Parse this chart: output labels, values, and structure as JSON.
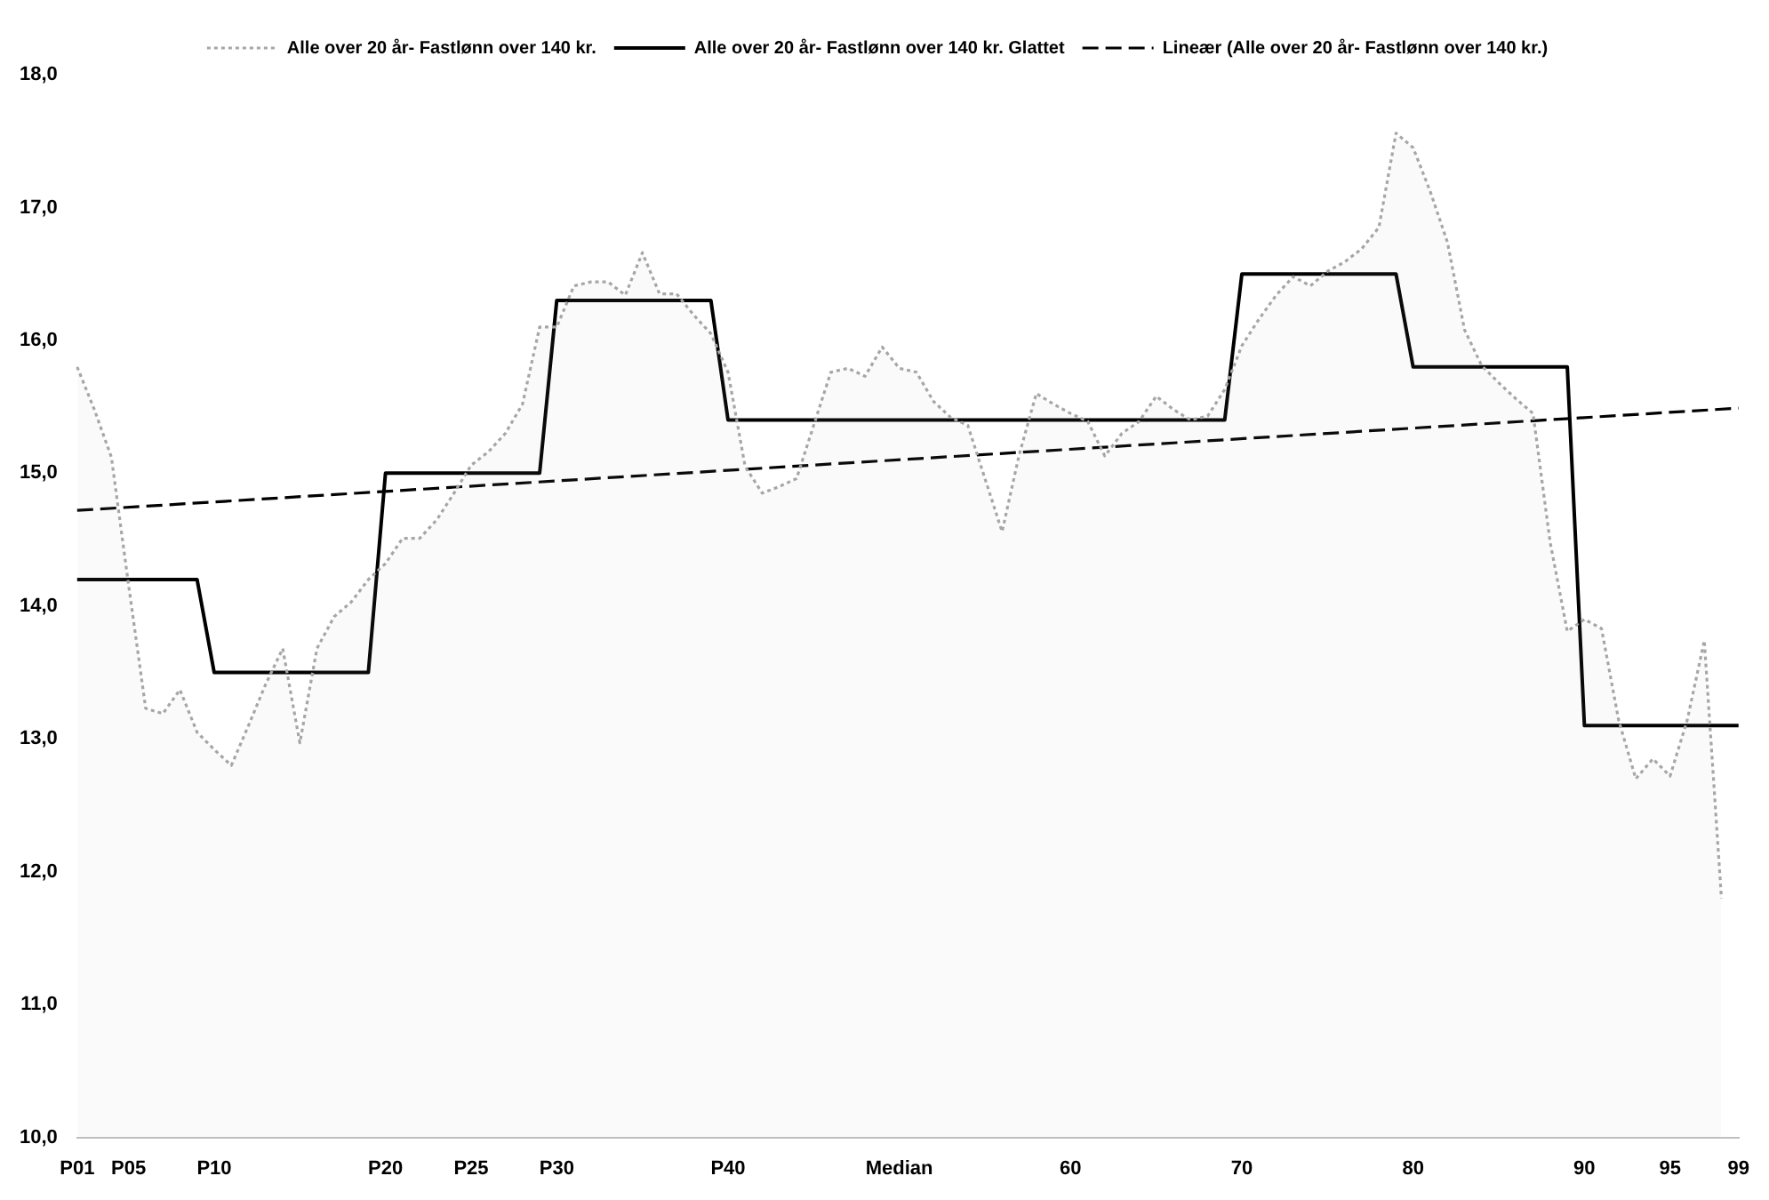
{
  "chart_data": {
    "type": "line",
    "categories": [
      "P01",
      null,
      null,
      "P05",
      null,
      null,
      null,
      null,
      "P10",
      null,
      null,
      null,
      null,
      null,
      null,
      null,
      null,
      null,
      "P20",
      null,
      null,
      null,
      null,
      "P25",
      null,
      null,
      null,
      null,
      "P30",
      null,
      null,
      null,
      null,
      null,
      null,
      null,
      null,
      null,
      "P40",
      null,
      null,
      null,
      null,
      null,
      null,
      null,
      null,
      null,
      "Median",
      null,
      null,
      null,
      null,
      null,
      null,
      null,
      null,
      null,
      "60",
      null,
      null,
      null,
      null,
      null,
      null,
      null,
      null,
      null,
      "70",
      null,
      null,
      null,
      null,
      null,
      null,
      null,
      null,
      null,
      "80",
      null,
      null,
      null,
      null,
      null,
      null,
      null,
      null,
      null,
      "90",
      null,
      null,
      null,
      null,
      "95",
      null,
      null,
      null,
      "99"
    ],
    "series": [
      {
        "name": "Alle over 20 år- Fastlønn over 140 kr.",
        "type": "area",
        "color": "#a6a6a6",
        "line_style": "dotted",
        "values": [
          15.8,
          15.48,
          15.12,
          14.16,
          13.23,
          13.19,
          13.37,
          13.05,
          12.92,
          12.8,
          13.1,
          13.41,
          13.68,
          12.97,
          13.68,
          13.92,
          14.03,
          14.2,
          14.32,
          14.51,
          14.51,
          14.65,
          14.85,
          15.06,
          15.16,
          15.3,
          15.52,
          16.1,
          16.1,
          16.41,
          16.44,
          16.44,
          16.34,
          16.66,
          16.35,
          16.35,
          16.19,
          16.05,
          15.76,
          15.05,
          14.85,
          14.9,
          14.96,
          15.36,
          15.76,
          15.79,
          15.73,
          15.95,
          15.79,
          15.76,
          15.54,
          15.42,
          15.36,
          14.96,
          14.56,
          15.14,
          15.6,
          15.52,
          15.45,
          15.39,
          15.13,
          15.3,
          15.39,
          15.58,
          15.48,
          15.4,
          15.43,
          15.63,
          15.96,
          16.16,
          16.34,
          16.48,
          16.41,
          16.52,
          16.59,
          16.69,
          16.85,
          17.56,
          17.45,
          17.12,
          16.74,
          16.08,
          15.81,
          15.68,
          15.56,
          15.45,
          14.48,
          13.81,
          13.9,
          13.83,
          13.14,
          12.7,
          12.85,
          12.72,
          13.14,
          13.74,
          11.8,
          null
        ]
      },
      {
        "name": "Alle over 20 år- Fastlønn over 140 kr. Glattet",
        "type": "line",
        "color": "#000000",
        "line_style": "solid",
        "values": [
          14.2,
          14.2,
          14.2,
          14.2,
          14.2,
          14.2,
          14.2,
          14.2,
          13.5,
          13.5,
          13.5,
          13.5,
          13.5,
          13.5,
          13.5,
          13.5,
          13.5,
          13.5,
          15.0,
          15.0,
          15.0,
          15.0,
          15.0,
          15.0,
          15.0,
          15.0,
          15.0,
          15.0,
          16.3,
          16.3,
          16.3,
          16.3,
          16.3,
          16.3,
          16.3,
          16.3,
          16.3,
          16.3,
          15.4,
          15.4,
          15.4,
          15.4,
          15.4,
          15.4,
          15.4,
          15.4,
          15.4,
          15.4,
          15.4,
          15.4,
          15.4,
          15.4,
          15.4,
          15.4,
          15.4,
          15.4,
          15.4,
          15.4,
          15.4,
          15.4,
          15.4,
          15.4,
          15.4,
          15.4,
          15.4,
          15.4,
          15.4,
          15.4,
          16.5,
          16.5,
          16.5,
          16.5,
          16.5,
          16.5,
          16.5,
          16.5,
          16.5,
          16.5,
          15.8,
          15.8,
          15.8,
          15.8,
          15.8,
          15.8,
          15.8,
          15.8,
          15.8,
          15.8,
          13.1,
          13.1,
          13.1,
          13.1,
          13.1,
          13.1,
          13.1,
          13.1,
          13.1,
          13.1
        ]
      },
      {
        "name": "Lineær (Alle over 20 år- Fastlønn over 140 kr.)",
        "type": "line",
        "color": "#000000",
        "line_style": "dashed",
        "x": [
          "P01",
          "99"
        ],
        "values": [
          14.72,
          15.49
        ]
      }
    ],
    "ylim": [
      10,
      18
    ],
    "yticks": [
      {
        "value": 10,
        "label": "10,0"
      },
      {
        "value": 11,
        "label": "11,0"
      },
      {
        "value": 12,
        "label": "12,0"
      },
      {
        "value": 13,
        "label": "13,0"
      },
      {
        "value": 14,
        "label": "14,0"
      },
      {
        "value": 15,
        "label": "15,0"
      },
      {
        "value": 16,
        "label": "16,0"
      },
      {
        "value": 17,
        "label": "17,0"
      },
      {
        "value": 18,
        "label": "18,0"
      }
    ],
    "grid": false,
    "legend": "top",
    "marker": "none"
  }
}
